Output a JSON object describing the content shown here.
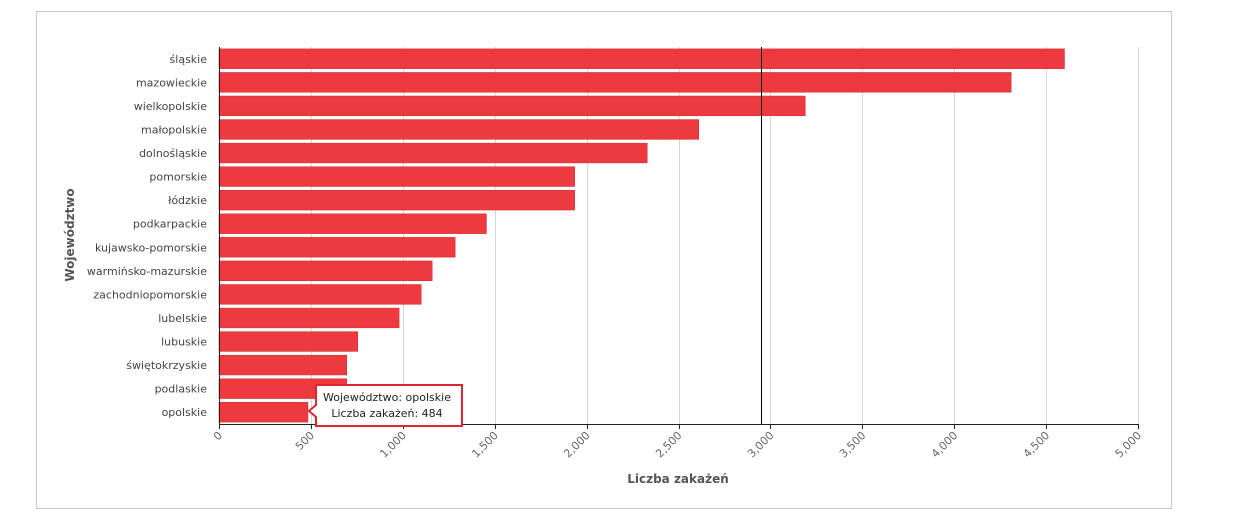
{
  "chart_data": {
    "type": "bar",
    "orientation": "horizontal",
    "categories": [
      "śląskie",
      "mazowieckie",
      "wielkopolskie",
      "małopolskie",
      "dolnośląskie",
      "pomorskie",
      "łódzkie",
      "podkarpackie",
      "kujawsko-pomorskie",
      "warmińsko-mazurskie",
      "zachodniopomorskie",
      "lubelskie",
      "lubuskie",
      "świętokrzyskie",
      "podlaskie",
      "opolskie"
    ],
    "series": [
      {
        "values": [
          4600,
          4310,
          3190,
          2610,
          2330,
          1935,
          1935,
          1455,
          1285,
          1160,
          1100,
          980,
          755,
          695,
          695,
          484
        ]
      }
    ],
    "xlabel": "Liczba zakażeń",
    "ylabel": "Województwo",
    "xlim": [
      0,
      5000
    ],
    "x_ticks": [
      "0",
      "500",
      "1,000",
      "1,500",
      "2,000",
      "2,500",
      "3,000",
      "3,500",
      "4,000",
      "4,500",
      "5,000"
    ],
    "x_tick_values": [
      0,
      500,
      1000,
      1500,
      2000,
      2500,
      3000,
      3500,
      4000,
      4500,
      5000
    ],
    "grid": true,
    "crosshair_value": 2950,
    "bar_color": "#ee3a3f",
    "bar_border_color": "#c92a2f",
    "tooltip": {
      "line1": "Województwo: opolskie",
      "line2": "Liczba zakażeń: 484",
      "border_color": "#d9282f"
    }
  }
}
